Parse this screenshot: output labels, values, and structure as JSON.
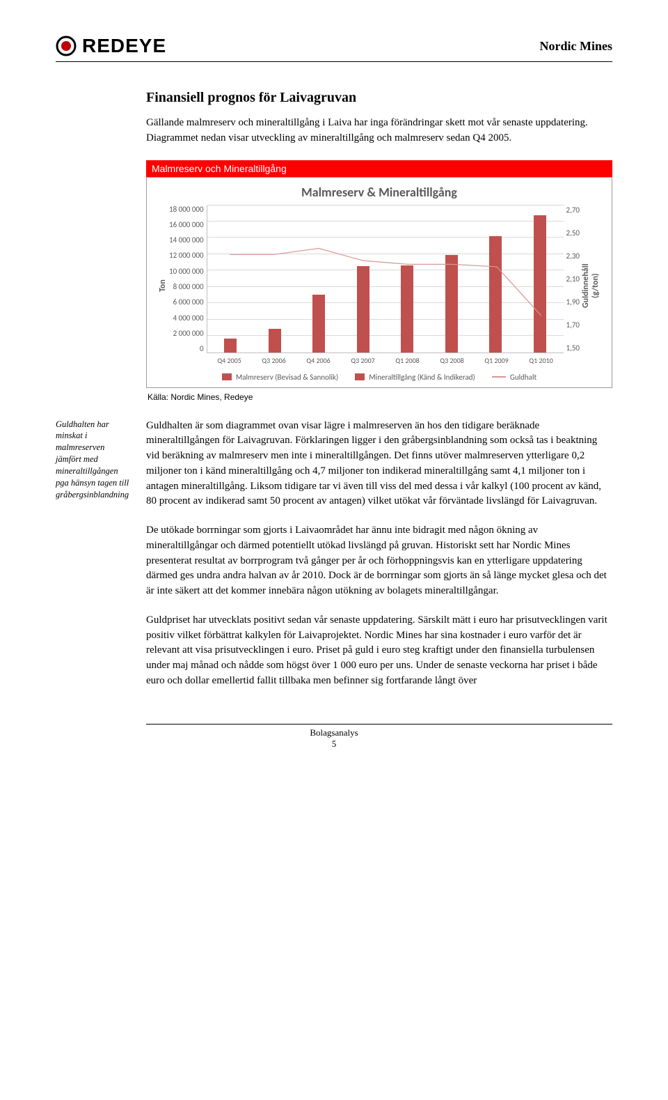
{
  "header": {
    "brand": "REDEYE",
    "doc_title": "Nordic Mines",
    "logo_outer": "#000000",
    "logo_inner": "#c00000"
  },
  "section": {
    "heading": "Finansiell prognos för Laivagruvan",
    "intro": "Gällande malmreserv och mineraltillgång i Laiva har inga förändringar skett mot vår senaste uppdatering. Diagrammet nedan visar utveckling av mineraltillgång och malmreserv sedan Q4 2005."
  },
  "chart": {
    "banner": "Malmreserv och Mineraltillgång",
    "title": "Malmreserv & Mineraltillgång",
    "ylabel": "Ton",
    "y2label": "Guldinnehåll\n(g/ton)",
    "categories": [
      "Q4 2005",
      "Q3 2006",
      "Q4 2006",
      "Q3 2007",
      "Q1 2008",
      "Q3 2008",
      "Q1 2009",
      "Q1 2010"
    ],
    "series1_name": "Malmreserv (Bevisad & Sannolik)",
    "series2_name": "Mineraltillgång (Känd & Indikerad)",
    "line_name": "Guldhalt",
    "series1_values": [
      0,
      0,
      0,
      0,
      0,
      0,
      0,
      16800000
    ],
    "series2_values": [
      1700000,
      2900000,
      7000000,
      10500000,
      10600000,
      11900000,
      14200000,
      0
    ],
    "line_values": [
      2.3,
      2.3,
      2.35,
      2.25,
      2.22,
      2.22,
      2.2,
      1.8
    ],
    "ylim": [
      0,
      18000000
    ],
    "ytick_step": 2000000,
    "yticks": [
      "18 000 000",
      "16 000 000",
      "14 000 000",
      "12 000 000",
      "10 000 000",
      "8 000 000",
      "6 000 000",
      "4 000 000",
      "2 000 000",
      "0"
    ],
    "y2lim": [
      1.5,
      2.7
    ],
    "y2ticks": [
      "2,70",
      "2,50",
      "2,30",
      "2,10",
      "1,90",
      "1,70",
      "1,50"
    ],
    "bar_color": "#c0504d",
    "line_color": "#d99694",
    "grid_color": "#d9d9d9",
    "source": "Källa: Nordic Mines, Redeye"
  },
  "margin_note": "Guldhalten har minskat i malmreserven jämfört med mineraltillgången pga hänsyn tagen till gråbergsinblandning",
  "body": {
    "p1": "Guldhalten är som diagrammet ovan visar lägre i malmreserven än hos den tidigare beräknade mineraltillgången för Laivagruvan. Förklaringen ligger i den gråbergsinblandning som också tas i beaktning vid beräkning av malmreserv men inte i mineraltillgången. Det finns utöver malmreserven ytterligare 0,2 miljoner ton i känd mineraltillgång och 4,7 miljoner ton indikerad mineraltillgång samt 4,1 miljoner ton i antagen mineraltillgång. Liksom tidigare tar vi även till viss del med dessa i vår kalkyl (100 procent av känd, 80 procent av indikerad samt 50 procent av antagen) vilket utökat vår förväntade livslängd för Laivagruvan.",
    "p2": "De utökade borrningar som gjorts i Laivaområdet har ännu inte bidragit med någon ökning av mineraltillgångar och därmed potentiellt utökad livslängd på gruvan. Historiskt sett har Nordic Mines presenterat resultat av borrprogram två gånger per år och förhoppningsvis kan en ytterligare uppdatering därmed ges undra andra halvan av år 2010. Dock är de borrningar som gjorts än så länge mycket glesa och det är inte säkert att det kommer innebära någon utökning av bolagets mineraltillgångar.",
    "p3": "Guldpriset har utvecklats positivt sedan vår senaste uppdatering. Särskilt mätt i euro har prisutvecklingen varit positiv vilket förbättrat kalkylen för Laivaprojektet. Nordic Mines har sina kostnader i euro varför det är relevant att visa prisutvecklingen i euro. Priset på guld i euro steg kraftigt under den finansiella turbulensen under maj månad och nådde som högst över 1 000 euro per uns. Under de senaste veckorna har priset i både euro och dollar emellertid fallit tillbaka men befinner sig fortfarande långt över"
  },
  "footer": {
    "label": "Bolagsanalys",
    "page": "5"
  }
}
